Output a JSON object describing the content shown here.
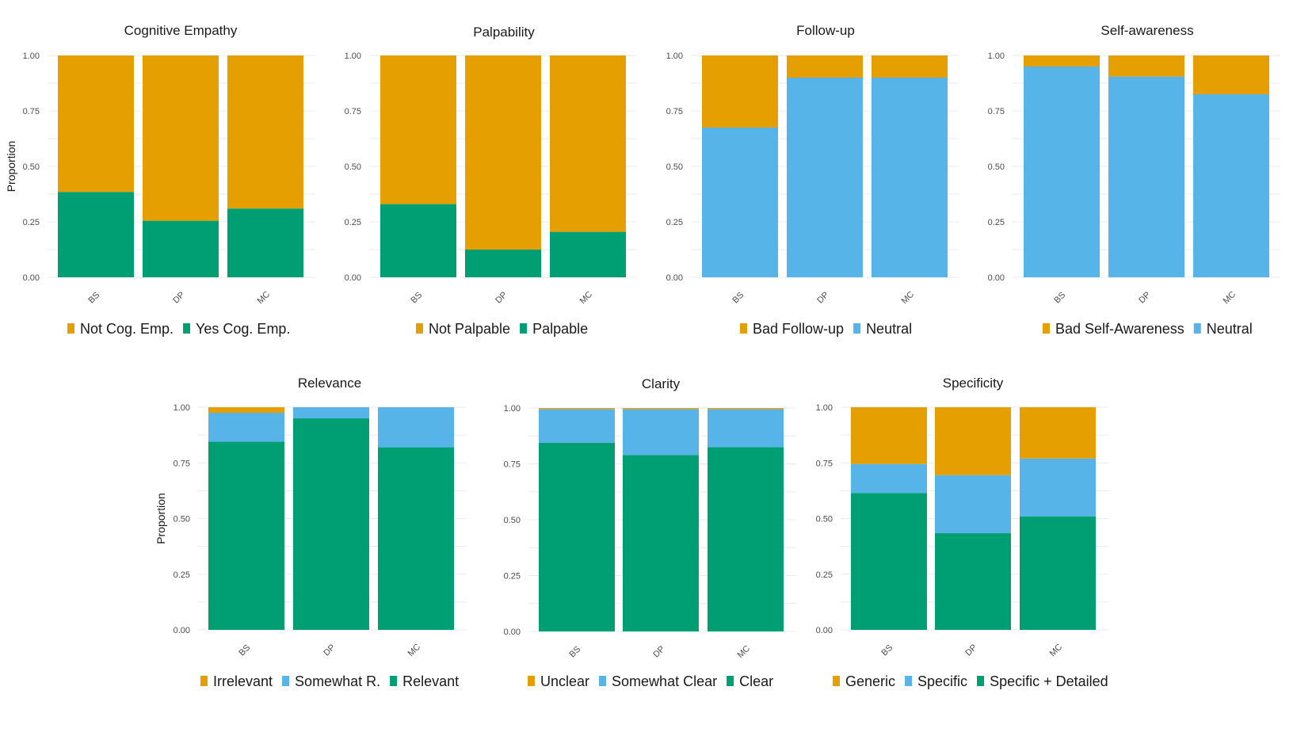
{
  "colors": {
    "orange": "#E69F00",
    "blue": "#56B4E9",
    "green": "#009E73"
  },
  "y_axis": {
    "label": "Proportion",
    "ticks": [
      "0.00",
      "0.25",
      "0.50",
      "0.75",
      "1.00"
    ]
  },
  "chart_data": [
    {
      "type": "bar",
      "stacked": true,
      "title": "Cognitive Empathy",
      "ylabel": "Proportion",
      "ylim": [
        0,
        1
      ],
      "categories": [
        "BS",
        "DP",
        "MC"
      ],
      "series": [
        {
          "name": "Not Cog. Emp.",
          "color": "#E69F00",
          "values": [
            0.615,
            0.745,
            0.69
          ]
        },
        {
          "name": "Yes Cog. Emp.",
          "color": "#009E73",
          "values": [
            0.385,
            0.255,
            0.31
          ]
        }
      ],
      "legend": [
        "Not Cog. Emp.",
        "Yes Cog. Emp."
      ]
    },
    {
      "type": "bar",
      "stacked": true,
      "title": "Palpability",
      "ylabel": "",
      "ylim": [
        0,
        1
      ],
      "categories": [
        "BS",
        "DP",
        "MC"
      ],
      "series": [
        {
          "name": "Not Palpable",
          "color": "#E69F00",
          "values": [
            0.67,
            0.875,
            0.795
          ]
        },
        {
          "name": "Palpable",
          "color": "#009E73",
          "values": [
            0.33,
            0.125,
            0.205
          ]
        }
      ],
      "legend": [
        "Not Palpable",
        "Palpable"
      ]
    },
    {
      "type": "bar",
      "stacked": true,
      "title": "Follow-up",
      "ylabel": "",
      "ylim": [
        0,
        1
      ],
      "categories": [
        "BS",
        "DP",
        "MC"
      ],
      "series": [
        {
          "name": "Bad Follow-up",
          "color": "#E69F00",
          "values": [
            0.325,
            0.1,
            0.1
          ]
        },
        {
          "name": "Neutral",
          "color": "#56B4E9",
          "values": [
            0.675,
            0.9,
            0.9
          ]
        }
      ],
      "legend": [
        "Bad Follow-up",
        "Neutral"
      ]
    },
    {
      "type": "bar",
      "stacked": true,
      "title": "Self-awareness",
      "ylabel": "",
      "ylim": [
        0,
        1
      ],
      "categories": [
        "BS",
        "DP",
        "MC"
      ],
      "series": [
        {
          "name": "Bad Self-Awareness",
          "color": "#E69F00",
          "values": [
            0.05,
            0.095,
            0.175
          ]
        },
        {
          "name": "Neutral",
          "color": "#56B4E9",
          "values": [
            0.95,
            0.905,
            0.825
          ]
        }
      ],
      "legend": [
        "Bad Self-Awareness",
        "Neutral"
      ]
    },
    {
      "type": "bar",
      "stacked": true,
      "title": "Relevance",
      "ylabel": "Proportion",
      "ylim": [
        0,
        1
      ],
      "categories": [
        "BS",
        "DP",
        "MC"
      ],
      "series": [
        {
          "name": "Irrelevant",
          "color": "#E69F00",
          "values": [
            0.025,
            0.0,
            0.0
          ]
        },
        {
          "name": "Somewhat R.",
          "color": "#56B4E9",
          "values": [
            0.13,
            0.05,
            0.18
          ]
        },
        {
          "name": "Relevant",
          "color": "#009E73",
          "values": [
            0.845,
            0.95,
            0.82
          ]
        }
      ],
      "legend": [
        "Irrelevant",
        "Somewhat R.",
        "Relevant"
      ]
    },
    {
      "type": "bar",
      "stacked": true,
      "title": "Clarity",
      "ylabel": "",
      "ylim": [
        0,
        1
      ],
      "categories": [
        "BS",
        "DP",
        "MC"
      ],
      "series": [
        {
          "name": "Unclear",
          "color": "#E69F00",
          "values": [
            0.005,
            0.005,
            0.005
          ]
        },
        {
          "name": "Somewhat Clear",
          "color": "#56B4E9",
          "values": [
            0.15,
            0.205,
            0.17
          ]
        },
        {
          "name": "Clear",
          "color": "#009E73",
          "values": [
            0.845,
            0.79,
            0.825
          ]
        }
      ],
      "legend": [
        "Unclear",
        "Somewhat Clear",
        "Clear"
      ]
    },
    {
      "type": "bar",
      "stacked": true,
      "title": "Specificity",
      "ylabel": "",
      "ylim": [
        0,
        1
      ],
      "categories": [
        "BS",
        "DP",
        "MC"
      ],
      "series": [
        {
          "name": "Generic",
          "color": "#E69F00",
          "values": [
            0.255,
            0.305,
            0.23
          ]
        },
        {
          "name": "Specific",
          "color": "#56B4E9",
          "values": [
            0.13,
            0.26,
            0.26
          ]
        },
        {
          "name": "Specific + Detailed",
          "color": "#009E73",
          "values": [
            0.615,
            0.435,
            0.51
          ]
        }
      ],
      "legend": [
        "Generic",
        "Specific",
        "Specific + Detailed"
      ]
    }
  ]
}
